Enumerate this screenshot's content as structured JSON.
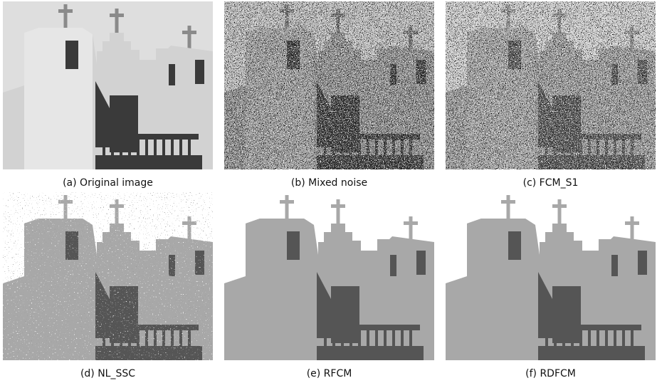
{
  "panels": [
    {
      "caption": "(a) Original image"
    },
    {
      "caption": "(b) Mixed noise"
    },
    {
      "caption": "(c) FCM_S1"
    },
    {
      "caption": "(d) NL_SSC"
    },
    {
      "caption": "(e) RFCM"
    },
    {
      "caption": "(f) RDFCM"
    }
  ]
}
